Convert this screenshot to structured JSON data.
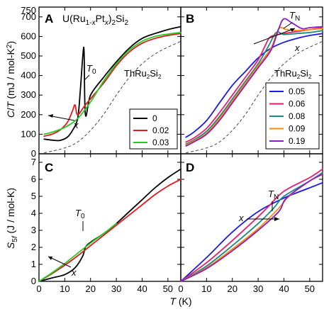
{
  "figure": {
    "x_axis_title": "T (K)",
    "x_ticks": [
      "0",
      "10",
      "20",
      "30",
      "40",
      "50"
    ],
    "top_ylabel": "C/T (mJ / mol-K²)",
    "bottom_ylabel": "S5f (J / mol-K)",
    "top_y_ticks": [
      "0",
      "100",
      "200",
      "300",
      "400",
      "500",
      "600",
      "700"
    ],
    "top_y_tick_750": "750",
    "bottom_y_ticks": [
      "0",
      "1",
      "2",
      "3",
      "4",
      "5",
      "6",
      "7"
    ]
  },
  "panels": {
    "A": {
      "letter": "A",
      "formula": "U(Ru1-xPtx)2Si2",
      "t0_label": "T0",
      "ref_label": "ThRu2Si2",
      "x_label": "x"
    },
    "B": {
      "letter": "B",
      "tn_label": "TN",
      "ref_label": "ThRu2Si2",
      "x_label": "x"
    },
    "C": {
      "letter": "C",
      "t0_label": "T0",
      "x_label": "x"
    },
    "D": {
      "letter": "D",
      "tn_label": "TN",
      "x_label": "x"
    }
  },
  "legend_left": [
    {
      "label": "0",
      "color": "#000000"
    },
    {
      "label": "0.02",
      "color": "#e41a1c"
    },
    {
      "label": "0.03",
      "color": "#22cc22"
    }
  ],
  "legend_right": [
    {
      "label": "0.05",
      "color": "#1a1aee"
    },
    {
      "label": "0.06",
      "color": "#ee1a6e"
    },
    {
      "label": "0.08",
      "color": "#1a8a7a"
    },
    {
      "label": "0.09",
      "color": "#ff8c00"
    },
    {
      "label": "0.19",
      "color": "#8b1acb"
    }
  ],
  "chart_data": [
    {
      "panel": "A",
      "type": "line",
      "xlabel": "T (K)",
      "ylabel": "C/T (mJ / mol-K²)",
      "xlim": [
        0,
        55
      ],
      "ylim": [
        0,
        750
      ],
      "series": [
        {
          "name": "0",
          "color": "#000000",
          "x": [
            2,
            5,
            8,
            11,
            13,
            15,
            16,
            17,
            17.5,
            18,
            20,
            25,
            30,
            35,
            40,
            45,
            50,
            55
          ],
          "y": [
            75,
            70,
            68,
            85,
            120,
            180,
            320,
            500,
            520,
            200,
            300,
            390,
            470,
            540,
            590,
            615,
            635,
            650
          ]
        },
        {
          "name": "0.02",
          "color": "#e41a1c",
          "x": [
            2,
            5,
            8,
            11,
            13,
            14,
            15,
            18,
            25,
            30,
            35,
            40,
            45,
            50,
            55
          ],
          "y": [
            90,
            100,
            120,
            160,
            220,
            250,
            200,
            250,
            360,
            450,
            520,
            565,
            590,
            605,
            615
          ]
        },
        {
          "name": "0.03",
          "color": "#22cc22",
          "x": [
            2,
            5,
            10,
            15,
            20,
            25,
            30,
            35,
            40,
            45,
            50,
            55
          ],
          "y": [
            100,
            110,
            135,
            180,
            265,
            370,
            460,
            530,
            575,
            600,
            612,
            620
          ]
        },
        {
          "name": "ThRu2Si2",
          "color": "#444444",
          "dashed": true,
          "x": [
            2,
            10,
            15,
            20,
            25,
            30,
            35,
            40,
            45,
            50,
            55
          ],
          "y": [
            5,
            30,
            60,
            120,
            200,
            300,
            390,
            460,
            510,
            545,
            575
          ]
        }
      ]
    },
    {
      "panel": "B",
      "type": "line",
      "xlabel": "T (K)",
      "ylabel": "C/T (mJ / mol-K²)",
      "xlim": [
        0,
        55
      ],
      "ylim": [
        0,
        750
      ],
      "series": [
        {
          "name": "0.05",
          "color": "#1a1aee",
          "x": [
            2,
            5,
            10,
            15,
            20,
            25,
            30,
            35,
            40,
            45,
            50,
            55
          ],
          "y": [
            85,
            110,
            170,
            260,
            350,
            420,
            490,
            540,
            570,
            590,
            605,
            615
          ]
        },
        {
          "name": "0.06",
          "color": "#ee1a6e",
          "x": [
            2,
            5,
            10,
            15,
            20,
            25,
            30,
            33,
            35,
            40,
            45,
            50,
            55
          ],
          "y": [
            60,
            80,
            130,
            210,
            300,
            390,
            480,
            560,
            600,
            615,
            625,
            635,
            645
          ]
        },
        {
          "name": "0.08",
          "color": "#1a8a7a",
          "x": [
            2,
            5,
            10,
            15,
            20,
            25,
            30,
            34,
            37,
            40,
            45,
            50,
            55
          ],
          "y": [
            50,
            70,
            115,
            190,
            280,
            370,
            460,
            550,
            620,
            610,
            615,
            620,
            630
          ]
        },
        {
          "name": "0.09",
          "color": "#ff8c00",
          "x": [
            2,
            5,
            10,
            15,
            20,
            25,
            30,
            35,
            38,
            41,
            45,
            50,
            55
          ],
          "y": [
            45,
            65,
            105,
            180,
            270,
            360,
            450,
            540,
            640,
            635,
            630,
            635,
            640
          ]
        },
        {
          "name": "0.19",
          "color": "#8b1acb",
          "x": [
            2,
            5,
            10,
            15,
            20,
            25,
            30,
            35,
            38,
            40,
            43,
            47,
            50,
            55
          ],
          "y": [
            40,
            60,
            100,
            170,
            260,
            350,
            440,
            530,
            640,
            690,
            670,
            640,
            645,
            650
          ]
        },
        {
          "name": "ThRu2Si2",
          "color": "#444444",
          "dashed": true,
          "x": [
            2,
            10,
            15,
            20,
            25,
            30,
            35,
            40,
            45,
            50,
            55
          ],
          "y": [
            5,
            30,
            60,
            120,
            200,
            300,
            390,
            460,
            510,
            545,
            575
          ]
        }
      ]
    },
    {
      "panel": "C",
      "type": "line",
      "xlabel": "T (K)",
      "ylabel": "S5f (J / mol-K)",
      "xlim": [
        0,
        55
      ],
      "ylim": [
        0,
        7.5
      ],
      "series": [
        {
          "name": "0",
          "color": "#000000",
          "x": [
            0,
            5,
            10,
            14,
            17,
            18,
            20,
            25,
            30,
            35,
            40,
            45,
            50,
            55
          ],
          "y": [
            0,
            0.2,
            0.4,
            0.8,
            1.5,
            2.0,
            2.3,
            2.8,
            3.4,
            4.1,
            4.8,
            5.5,
            6.1,
            6.6
          ]
        },
        {
          "name": "0.02",
          "color": "#e41a1c",
          "x": [
            0,
            5,
            10,
            15,
            20,
            25,
            30,
            35,
            40,
            45,
            50,
            55
          ],
          "y": [
            0,
            0.45,
            0.95,
            1.5,
            2.1,
            2.7,
            3.3,
            3.9,
            4.5,
            5.1,
            5.6,
            6.0
          ]
        },
        {
          "name": "0.03",
          "color": "#22cc22",
          "x": [
            0,
            5,
            10,
            15,
            20,
            25,
            30
          ],
          "y": [
            0,
            0.5,
            1.05,
            1.65,
            2.25,
            2.8,
            3.4
          ]
        }
      ]
    },
    {
      "panel": "D",
      "type": "line",
      "xlabel": "T (K)",
      "ylabel": "S5f (J / mol-K)",
      "xlim": [
        0,
        55
      ],
      "ylim": [
        0,
        7.5
      ],
      "series": [
        {
          "name": "0.05",
          "color": "#1a1aee",
          "x": [
            0,
            10,
            20,
            30,
            40,
            50,
            55
          ],
          "y": [
            0,
            1.4,
            2.9,
            4.1,
            4.9,
            5.5,
            5.8
          ]
        },
        {
          "name": "0.06",
          "color": "#ee1a6e",
          "x": [
            0,
            10,
            20,
            30,
            34,
            40,
            50,
            55
          ],
          "y": [
            0,
            1.1,
            2.4,
            3.8,
            4.4,
            5.3,
            6.1,
            6.6
          ]
        },
        {
          "name": "0.08",
          "color": "#1a8a7a",
          "x": [
            0,
            10,
            20,
            30,
            36,
            40,
            50,
            55
          ],
          "y": [
            0,
            0.9,
            2.1,
            3.4,
            4.3,
            5.0,
            5.9,
            6.4
          ]
        },
        {
          "name": "0.09",
          "color": "#ff8c00",
          "x": [
            0,
            10,
            20,
            30,
            38,
            42,
            50,
            55
          ],
          "y": [
            0,
            0.8,
            1.9,
            3.1,
            4.3,
            5.0,
            5.9,
            6.3
          ]
        },
        {
          "name": "0.19",
          "color": "#8b1acb",
          "x": [
            0,
            10,
            20,
            30,
            38,
            41,
            50,
            55
          ],
          "y": [
            0,
            0.75,
            1.8,
            3.0,
            4.1,
            4.9,
            5.9,
            6.3
          ]
        }
      ]
    }
  ]
}
